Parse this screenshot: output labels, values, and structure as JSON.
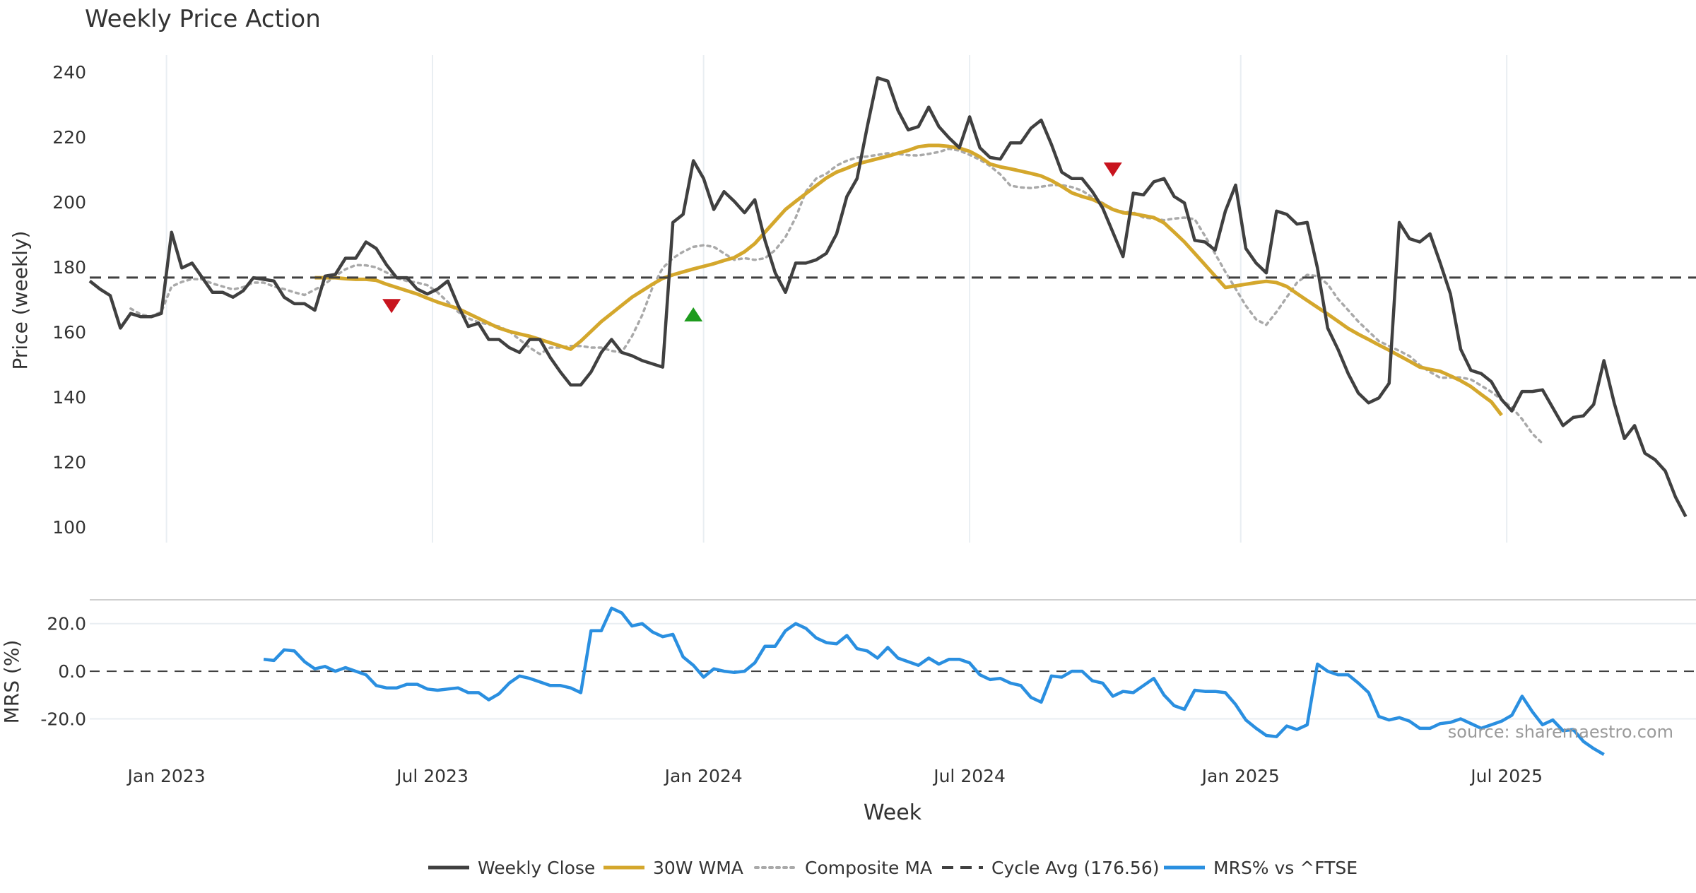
{
  "chart_data": {
    "type": "line",
    "title": "Weekly Price Action",
    "xlabel": "Week",
    "watermark": "source: sharemaestro.com",
    "x_ticks": [
      {
        "label": "Jan 2023",
        "week": 0
      },
      {
        "label": "Jul 2023",
        "week": 26
      },
      {
        "label": "Jan 2024",
        "week": 52.5
      },
      {
        "label": "Jul 2024",
        "week": 78.5
      },
      {
        "label": "Jan 2025",
        "week": 105
      },
      {
        "label": "Jul 2025",
        "week": 131
      }
    ],
    "x_range": [
      -7.5,
      149.5
    ],
    "price_panel": {
      "ylabel": "Price (weekly)",
      "ylim": [
        95,
        245
      ],
      "yticks": [
        100,
        120,
        140,
        160,
        180,
        200,
        220,
        240
      ],
      "weekly_close": {
        "start_week": -7.5,
        "values": [
          175.5,
          173,
          171,
          161,
          165.5,
          164.5,
          164.5,
          165.5,
          190.5,
          179.5,
          181,
          176.5,
          172,
          172,
          170.5,
          172.5,
          176.5,
          176,
          175.5,
          170.5,
          168.5,
          168.5,
          166.5,
          177,
          177.5,
          182.5,
          182.5,
          187.5,
          185.5,
          180.5,
          176.5,
          176.5,
          173,
          171.5,
          173,
          175.5,
          168,
          161.5,
          162.5,
          157.5,
          157.5,
          155,
          153.5,
          157.5,
          157.5,
          152,
          147.5,
          143.5,
          143.5,
          147.5,
          153.5,
          157.5,
          153.5,
          152.5,
          151,
          150,
          149,
          193.5,
          196,
          212.5,
          207,
          197.5,
          203,
          200,
          196.5,
          200.5,
          188,
          178,
          172,
          181,
          181,
          182,
          184,
          190,
          201.5,
          207,
          223,
          238,
          237,
          228,
          222,
          223,
          229,
          223,
          219.5,
          216.5,
          226,
          216.5,
          213.5,
          213,
          218,
          218,
          222.5,
          225,
          217.5,
          209,
          207,
          207,
          203,
          198,
          190.5,
          183,
          202.5,
          202,
          206,
          207,
          201.5,
          199.5,
          188,
          187.5,
          185,
          197,
          205,
          185.5,
          181,
          178,
          197,
          196,
          193,
          193.5,
          179.5,
          161,
          154.5,
          147,
          141,
          138,
          139.5,
          144,
          193.5,
          188.5,
          187.5,
          190,
          181,
          171.5,
          154.5,
          148,
          147,
          144.5,
          139,
          135.5,
          141.5,
          141.5,
          142,
          136.5,
          131,
          133.5,
          134,
          137.5,
          151,
          138,
          127,
          131,
          122.5,
          120.5,
          117,
          109,
          103
        ]
      },
      "wma_30w": {
        "start_week": 14.5,
        "values": [
          176.5,
          176.5,
          176.5,
          176.2,
          176,
          176,
          175.7,
          174.5,
          173.5,
          172.5,
          171.5,
          170.2,
          169,
          168,
          167,
          165.5,
          164,
          162.5,
          161,
          160,
          159.2,
          158.5,
          157.5,
          156.5,
          155.5,
          154.5,
          157,
          160,
          163,
          165.5,
          168,
          170.5,
          172.5,
          174.5,
          176.3,
          177.4,
          178.3,
          179.2,
          180,
          180.8,
          181.8,
          182.7,
          184.5,
          187,
          190.5,
          194,
          197.5,
          200,
          202.4,
          204.8,
          207.2,
          209,
          210.2,
          211.5,
          212.3,
          213.1,
          213.9,
          214.8,
          215.7,
          216.8,
          217.2,
          217.2,
          216.9,
          216.4,
          215.4,
          213.7,
          211.5,
          210.6,
          210,
          209.3,
          208.6,
          207.8,
          206.4,
          204.6,
          202.6,
          201.5,
          200.6,
          199.2,
          197.5,
          196.5,
          196.2,
          195.6,
          195,
          193.4,
          190.5,
          187.5,
          184,
          180.5,
          177,
          173.5,
          174,
          174.5,
          175,
          175.4,
          175,
          173.8,
          171.6,
          169.5,
          167.4,
          165.3,
          163.1,
          160.9,
          159.1,
          157.5,
          155.8,
          154.2,
          152.5,
          150.8,
          149,
          148.3,
          147.7,
          146.3,
          144.8,
          143,
          140.6,
          138.3,
          134.2
        ]
      },
      "composite_ma": {
        "start_week": -3.5,
        "values": [
          167,
          165.2,
          164.6,
          166,
          173.8,
          175.2,
          176.1,
          176,
          174.7,
          173.8,
          172.9,
          173.6,
          175,
          175,
          173.8,
          173,
          172,
          171.2,
          172.8,
          174.6,
          177,
          179.1,
          180.4,
          180.3,
          179.7,
          178.1,
          176.4,
          175.5,
          175,
          174.2,
          172,
          169,
          166,
          164,
          162.8,
          162.1,
          161.5,
          160,
          157.5,
          155,
          153,
          155,
          155,
          155.5,
          155.5,
          155,
          155,
          154,
          153.5,
          158.5,
          165,
          173.5,
          179.5,
          182.5,
          184.5,
          186,
          186.5,
          186,
          184,
          182,
          182.5,
          182,
          182.5,
          185,
          189,
          195,
          203,
          207,
          208.5,
          211,
          212.5,
          213.5,
          213.8,
          214.3,
          214.8,
          214.6,
          214.2,
          214.1,
          214.6,
          215.2,
          216.2,
          215.6,
          214.3,
          212.8,
          210.9,
          208.3,
          204.8,
          204.3,
          204.1,
          204.5,
          205,
          205,
          204.4,
          203.3,
          201.2,
          199.5,
          197.6,
          196.8,
          196.6,
          195,
          194.7,
          194.2,
          194.7,
          195,
          194.5,
          189.4,
          183.9,
          178.3,
          173.1,
          167.9,
          163.7,
          162,
          166,
          170.5,
          175,
          177.4,
          177,
          174.5,
          170,
          166.5,
          163,
          160,
          157,
          155.5,
          154,
          152.4,
          149.6,
          147.5,
          145.7,
          145.8,
          145.8,
          145.2,
          143.3,
          141.4,
          139,
          136.6,
          133,
          128.5,
          125.5
        ]
      },
      "cycle_avg": {
        "value": 176.56
      },
      "signals": [
        {
          "type": "sell",
          "week": 22,
          "price": 168
        },
        {
          "type": "buy",
          "week": 51.5,
          "price": 165
        },
        {
          "type": "sell",
          "week": 92.5,
          "price": 210
        }
      ]
    },
    "mrs_panel": {
      "ylabel": "MRS (%)",
      "ylim": [
        -35,
        30
      ],
      "yticks": [
        {
          "value": 20,
          "label": "20.0"
        },
        {
          "value": 0,
          "label": "0.0"
        },
        {
          "value": -20,
          "label": "-20.0"
        }
      ],
      "zero_line": 0,
      "mrs": {
        "start_week": 9.5,
        "values": [
          5,
          4.5,
          9,
          8.5,
          4,
          1,
          2,
          0,
          1.5,
          0,
          -1.5,
          -6,
          -7,
          -7,
          -5.5,
          -5.5,
          -7.5,
          -8,
          -7.5,
          -7,
          -9,
          -9,
          -12,
          -9.5,
          -5,
          -2,
          -3,
          -4.5,
          -6,
          -6,
          -7,
          -9,
          17,
          17,
          26.5,
          24.5,
          19,
          20,
          16.5,
          14.5,
          15.5,
          6,
          2.5,
          -2.5,
          1,
          0,
          -0.5,
          0,
          3.5,
          10.5,
          10.5,
          17,
          20,
          18,
          14,
          12,
          11.5,
          15,
          9.5,
          8.5,
          5.5,
          10,
          5.5,
          4,
          2.5,
          5.5,
          3,
          5,
          5,
          3.5,
          -1.5,
          -3.5,
          -3,
          -5,
          -6,
          -11,
          -13,
          -2,
          -2.5,
          0,
          0,
          -4,
          -5,
          -10.5,
          -8.5,
          -9,
          -6,
          -3,
          -10,
          -14.5,
          -16,
          -8,
          -8.5,
          -8.5,
          -9,
          -14,
          -20.5,
          -24,
          -27,
          -27.5,
          -23,
          -24.5,
          -22.5,
          3,
          0,
          -1.5,
          -1.5,
          -5,
          -9,
          -19,
          -20.5,
          -19.5,
          -21,
          -24,
          -24,
          -22,
          -21.5,
          -20,
          -22,
          -24,
          -22.5,
          -21,
          -18.5,
          -10.5,
          -17,
          -22.5,
          -20.5,
          -25,
          -24.5,
          -29.5,
          -32.5,
          -35
        ]
      }
    },
    "legend": [
      {
        "label": "Weekly Close",
        "color": "#404040",
        "style": "solid"
      },
      {
        "label": "30W WMA",
        "color": "#d4a72c",
        "style": "solid"
      },
      {
        "label": "Composite MA",
        "color": "#a9a9a9",
        "style": "dotted"
      },
      {
        "label": "Cycle Avg (176.56)",
        "color": "#404040",
        "style": "dashed"
      },
      {
        "label": "MRS% vs ^FTSE",
        "color": "#2a8fe0",
        "style": "solid"
      }
    ],
    "colors": {
      "close": "#404040",
      "wma": "#d4a72c",
      "composite": "#a9a9a9",
      "cycle": "#404040",
      "mrs": "#2a8fe0",
      "sell": "#c8141e",
      "buy": "#1e9b1e",
      "grid": "#e9eef2",
      "text": "#333333"
    }
  }
}
